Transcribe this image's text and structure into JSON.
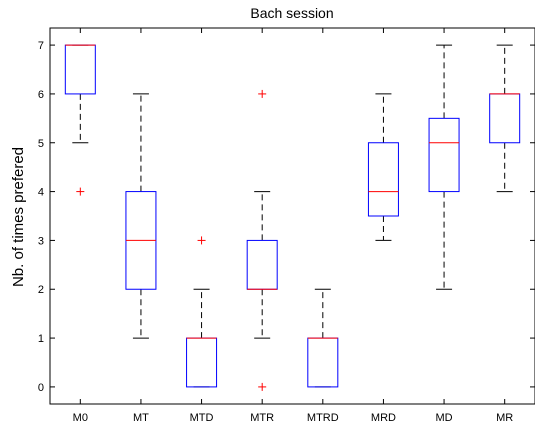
{
  "chart_data": {
    "type": "boxplot",
    "title": "Bach session",
    "xlabel": "",
    "ylabel": "Nb. of times prefered",
    "ylim": [
      -0.35,
      7.35
    ],
    "yticks": [
      "0",
      "1",
      "2",
      "3",
      "4",
      "5",
      "6",
      "7"
    ],
    "grid": false,
    "colors": {
      "box": "#0000ff",
      "median": "#ff0000",
      "whisker": "#000000",
      "outlier": "#ff0000",
      "axes": "#000000"
    },
    "categories": [
      "M0",
      "MT",
      "MTD",
      "MTR",
      "MTRD",
      "MRD",
      "MD",
      "MR"
    ],
    "boxes": [
      {
        "label": "M0",
        "whisker_low": 5,
        "q1": 6,
        "median": 7,
        "q3": 7,
        "whisker_high": 7,
        "outliers": [
          4
        ]
      },
      {
        "label": "MT",
        "whisker_low": 1,
        "q1": 2,
        "median": 3,
        "q3": 4,
        "whisker_high": 6,
        "outliers": []
      },
      {
        "label": "MTD",
        "whisker_low": 0,
        "q1": 0,
        "median": 1,
        "q3": 1,
        "whisker_high": 2,
        "outliers": [
          3
        ]
      },
      {
        "label": "MTR",
        "whisker_low": 1,
        "q1": 2,
        "median": 2,
        "q3": 3,
        "whisker_high": 4,
        "outliers": [
          0,
          6
        ]
      },
      {
        "label": "MTRD",
        "whisker_low": 0,
        "q1": 0,
        "median": 1,
        "q3": 1,
        "whisker_high": 2,
        "outliers": []
      },
      {
        "label": "MRD",
        "whisker_low": 3,
        "q1": 3.5,
        "median": 4,
        "q3": 5,
        "whisker_high": 6,
        "outliers": []
      },
      {
        "label": "MD",
        "whisker_low": 2,
        "q1": 4,
        "median": 5,
        "q3": 5.5,
        "whisker_high": 7,
        "outliers": []
      },
      {
        "label": "MR",
        "whisker_low": 4,
        "q1": 5,
        "median": 6,
        "q3": 6,
        "whisker_high": 7,
        "outliers": []
      }
    ]
  }
}
